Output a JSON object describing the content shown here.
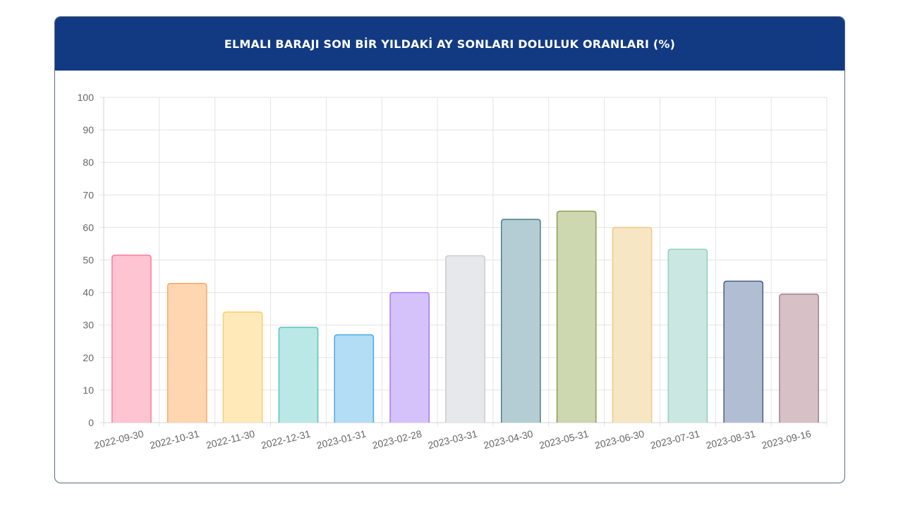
{
  "page_title": "ELMALI BARAJI SON BİR YILDAKİ AY SONLARI DOLULUK ORANLARI (%)",
  "chart_data": {
    "type": "bar",
    "title": "ELMALI BARAJI SON BİR YILDAKİ AY SONLARI DOLULUK ORANLARI (%)",
    "categories": [
      "2022-09-30",
      "2022-10-31",
      "2022-11-30",
      "2022-12-31",
      "2023-01-31",
      "2023-02-28",
      "2023-03-31",
      "2023-04-30",
      "2023-05-31",
      "2023-06-30",
      "2023-07-31",
      "2023-08-31",
      "2023-09-16"
    ],
    "values": [
      51.5,
      42.8,
      34,
      29.3,
      27,
      40,
      51.3,
      62.5,
      65,
      60,
      53.3,
      43.5,
      39.5
    ],
    "ylim": [
      0,
      100
    ],
    "yticks": [
      "0",
      "10",
      "20",
      "30",
      "40",
      "50",
      "60",
      "70",
      "80",
      "90",
      "100"
    ],
    "xlabel": "",
    "ylabel": "",
    "grid": true,
    "legend": "none",
    "bar_fill_colors": [
      "#ffc4d2",
      "#ffd6b0",
      "#ffe9b8",
      "#b9e8e6",
      "#b3dcf5",
      "#d6c2fb",
      "#e7e8ec",
      "#b3cdd3",
      "#cdd7b0",
      "#f7e6c3",
      "#cbe7e1",
      "#b1bdd3",
      "#d7c0c6"
    ],
    "bar_border_colors": [
      "#ff7b99",
      "#ffa65f",
      "#f8cf6f",
      "#5cc3c0",
      "#49a9e8",
      "#a57bfa",
      "#c9cbcf",
      "#4f7f8b",
      "#8b9d52",
      "#eccb86",
      "#8fd0c2",
      "#4b5f85",
      "#a3818b"
    ]
  }
}
